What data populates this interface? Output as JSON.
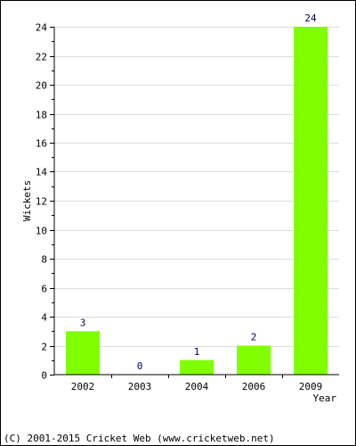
{
  "chart_data": {
    "type": "bar",
    "categories": [
      "2002",
      "2003",
      "2004",
      "2006",
      "2009"
    ],
    "values": [
      3,
      0,
      1,
      2,
      24
    ],
    "data_labels": [
      "3",
      "0",
      "1",
      "2",
      "24"
    ],
    "xlabel": "Year",
    "ylabel": "Wickets",
    "ylim": [
      0,
      24
    ],
    "yticks": [
      0,
      2,
      4,
      6,
      8,
      10,
      12,
      14,
      16,
      18,
      20,
      22,
      24
    ],
    "grid": true,
    "bar_color": "#80ff00"
  },
  "footer": {
    "copyright": "(C) 2001-2015 Cricket Web (www.cricketweb.net)"
  }
}
